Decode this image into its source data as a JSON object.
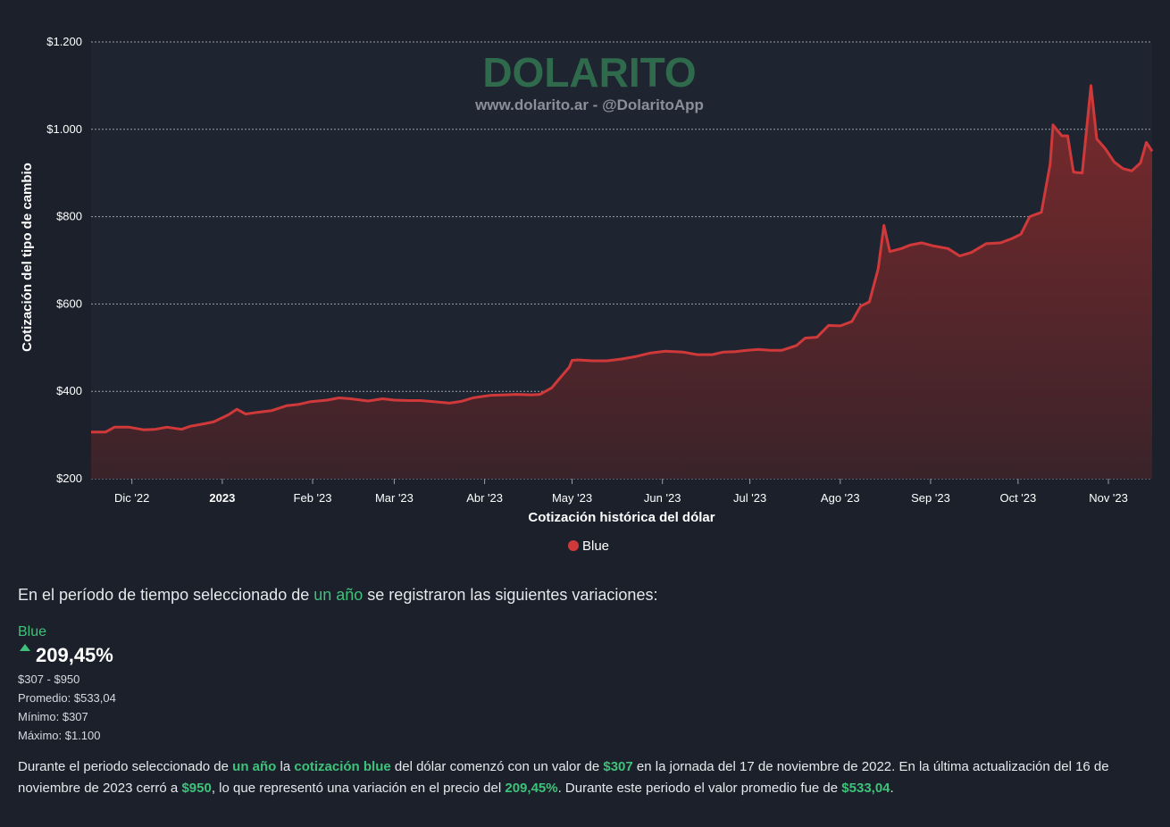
{
  "chart_data": {
    "type": "area",
    "watermark_title": "DOLARITO",
    "watermark_subtitle": "www.dolarito.ar - @DolaritoApp",
    "xlabel": "Cotización histórica del dólar",
    "ylabel": "Cotización del tipo de cambio",
    "ylim": [
      200,
      1200
    ],
    "grid": true,
    "legend_position": "bottom-center",
    "y_ticks": [
      {
        "value": 200,
        "label": "$200"
      },
      {
        "value": 400,
        "label": "$400"
      },
      {
        "value": 600,
        "label": "$600"
      },
      {
        "value": 800,
        "label": "$800"
      },
      {
        "value": 1000,
        "label": "$1.000"
      },
      {
        "value": 1200,
        "label": "$1.200"
      }
    ],
    "x_ticks": [
      {
        "date": "2022-12-01",
        "label": "Dic '22",
        "bold": false
      },
      {
        "date": "2023-01-01",
        "label": "2023",
        "bold": true
      },
      {
        "date": "2023-02-01",
        "label": "Feb '23",
        "bold": false
      },
      {
        "date": "2023-03-01",
        "label": "Mar '23",
        "bold": false
      },
      {
        "date": "2023-04-01",
        "label": "Abr '23",
        "bold": false
      },
      {
        "date": "2023-05-01",
        "label": "May '23",
        "bold": false
      },
      {
        "date": "2023-06-01",
        "label": "Jun '23",
        "bold": false
      },
      {
        "date": "2023-07-01",
        "label": "Jul '23",
        "bold": false
      },
      {
        "date": "2023-08-01",
        "label": "Ago '23",
        "bold": false
      },
      {
        "date": "2023-09-01",
        "label": "Sep '23",
        "bold": false
      },
      {
        "date": "2023-10-01",
        "label": "Oct '23",
        "bold": false
      },
      {
        "date": "2023-11-01",
        "label": "Nov '23",
        "bold": false
      }
    ],
    "x_range": [
      "2022-11-17",
      "2023-11-16"
    ],
    "series": [
      {
        "name": "Blue",
        "color": "#d0393a",
        "points": [
          [
            "2022-11-17",
            307
          ],
          [
            "2022-11-22",
            307
          ],
          [
            "2022-11-25",
            318
          ],
          [
            "2022-11-30",
            318
          ],
          [
            "2022-12-05",
            312
          ],
          [
            "2022-12-09",
            313
          ],
          [
            "2022-12-13",
            318
          ],
          [
            "2022-12-18",
            313
          ],
          [
            "2022-12-21",
            320
          ],
          [
            "2022-12-26",
            326
          ],
          [
            "2022-12-29",
            330
          ],
          [
            "2023-01-03",
            346
          ],
          [
            "2023-01-06",
            359
          ],
          [
            "2023-01-09",
            348
          ],
          [
            "2023-01-13",
            352
          ],
          [
            "2023-01-18",
            356
          ],
          [
            "2023-01-23",
            367
          ],
          [
            "2023-01-27",
            370
          ],
          [
            "2023-01-31",
            376
          ],
          [
            "2023-02-06",
            380
          ],
          [
            "2023-02-10",
            385
          ],
          [
            "2023-02-14",
            383
          ],
          [
            "2023-02-20",
            378
          ],
          [
            "2023-02-25",
            383
          ],
          [
            "2023-03-01",
            380
          ],
          [
            "2023-03-06",
            379
          ],
          [
            "2023-03-10",
            379
          ],
          [
            "2023-03-15",
            376
          ],
          [
            "2023-03-20",
            373
          ],
          [
            "2023-03-24",
            377
          ],
          [
            "2023-03-28",
            385
          ],
          [
            "2023-04-03",
            391
          ],
          [
            "2023-04-08",
            392
          ],
          [
            "2023-04-12",
            393
          ],
          [
            "2023-04-17",
            392
          ],
          [
            "2023-04-20",
            393
          ],
          [
            "2023-04-24",
            408
          ],
          [
            "2023-04-27",
            432
          ],
          [
            "2023-04-30",
            455
          ],
          [
            "2023-05-01",
            471
          ],
          [
            "2023-05-03",
            472
          ],
          [
            "2023-05-08",
            470
          ],
          [
            "2023-05-13",
            470
          ],
          [
            "2023-05-18",
            474
          ],
          [
            "2023-05-23",
            480
          ],
          [
            "2023-05-28",
            488
          ],
          [
            "2023-06-02",
            492
          ],
          [
            "2023-06-08",
            490
          ],
          [
            "2023-06-13",
            484
          ],
          [
            "2023-06-18",
            484
          ],
          [
            "2023-06-22",
            490
          ],
          [
            "2023-06-26",
            491
          ],
          [
            "2023-06-30",
            494
          ],
          [
            "2023-07-04",
            496
          ],
          [
            "2023-07-08",
            494
          ],
          [
            "2023-07-12",
            494
          ],
          [
            "2023-07-17",
            505
          ],
          [
            "2023-07-20",
            522
          ],
          [
            "2023-07-24",
            524
          ],
          [
            "2023-07-28",
            551
          ],
          [
            "2023-08-01",
            550
          ],
          [
            "2023-08-05",
            560
          ],
          [
            "2023-08-08",
            595
          ],
          [
            "2023-08-11",
            605
          ],
          [
            "2023-08-14",
            680
          ],
          [
            "2023-08-16",
            780
          ],
          [
            "2023-08-18",
            720
          ],
          [
            "2023-08-22",
            727
          ],
          [
            "2023-08-25",
            735
          ],
          [
            "2023-08-29",
            740
          ],
          [
            "2023-09-02",
            733
          ],
          [
            "2023-09-07",
            727
          ],
          [
            "2023-09-11",
            710
          ],
          [
            "2023-09-15",
            718
          ],
          [
            "2023-09-20",
            738
          ],
          [
            "2023-09-25",
            740
          ],
          [
            "2023-09-29",
            750
          ],
          [
            "2023-10-02",
            760
          ],
          [
            "2023-10-05",
            800
          ],
          [
            "2023-10-09",
            810
          ],
          [
            "2023-10-12",
            920
          ],
          [
            "2023-10-13",
            1010
          ],
          [
            "2023-10-16",
            985
          ],
          [
            "2023-10-18",
            985
          ],
          [
            "2023-10-20",
            902
          ],
          [
            "2023-10-23",
            900
          ],
          [
            "2023-10-26",
            1100
          ],
          [
            "2023-10-28",
            978
          ],
          [
            "2023-10-31",
            955
          ],
          [
            "2023-11-03",
            925
          ],
          [
            "2023-11-06",
            910
          ],
          [
            "2023-11-09",
            905
          ],
          [
            "2023-11-12",
            923
          ],
          [
            "2023-11-14",
            970
          ],
          [
            "2023-11-16",
            950
          ]
        ]
      }
    ]
  },
  "summary": {
    "intro_before": "En el período de tiempo seleccionado de ",
    "intro_link": "un año",
    "intro_after": " se registraron las siguientes variaciones:",
    "series_name": "Blue",
    "variation_pct": "209,45%",
    "range": "$307 - $950",
    "average": "Promedio: $533,04",
    "minimum": "Mínimo: $307",
    "maximum": "Máximo: $1.100",
    "desc_1": "Durante el periodo seleccionado de ",
    "desc_link_1": "un año",
    "desc_2": " la ",
    "desc_link_2": "cotización blue",
    "desc_3": " del dólar comenzó con un valor de ",
    "desc_val_1": "$307",
    "desc_4": " en la jornada del 17 de noviembre de 2022. En la última actualización del 16 de noviembre de 2023 cerró a ",
    "desc_val_2": "$950",
    "desc_5": ", lo que representó una variación en el precio del ",
    "desc_val_3": "209,45%",
    "desc_6": ". Durante este periodo el valor promedio fue de ",
    "desc_val_4": "$533,04",
    "desc_7": "."
  }
}
